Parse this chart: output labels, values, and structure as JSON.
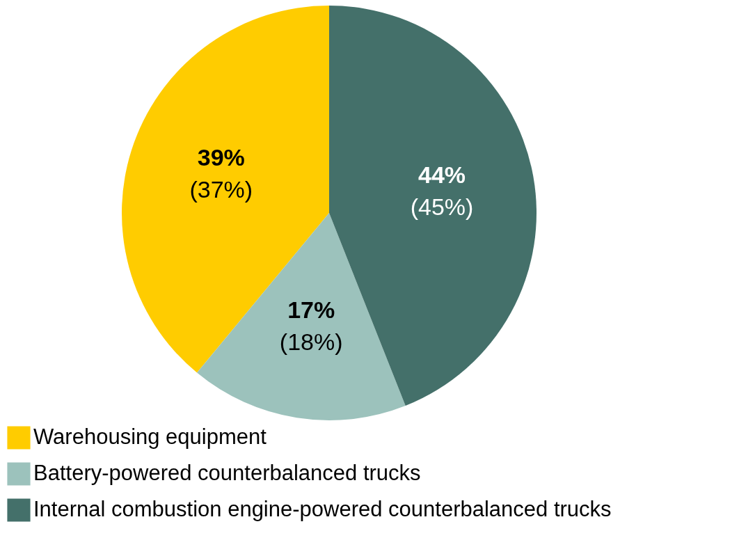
{
  "chart_data": {
    "type": "pie",
    "categories": [
      "Warehousing equipment",
      "Battery-powered counterbalanced trucks",
      "Internal combustion engine-powered counterbalanced trucks"
    ],
    "values": [
      39,
      17,
      44
    ],
    "colors": [
      "#ffcc00",
      "#9cc2bc",
      "#44706a"
    ],
    "value_labels": [
      "39%\n(37%)",
      "17%\n(18%)",
      "44%\n(45%)"
    ],
    "legend": "bottom left"
  }
}
